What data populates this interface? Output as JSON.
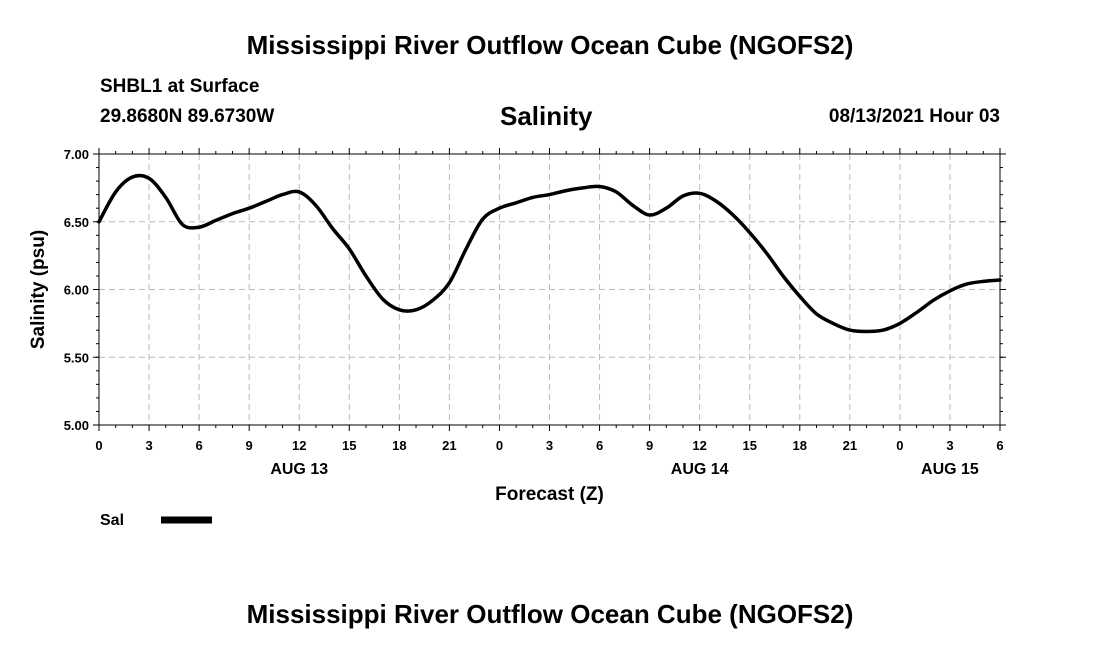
{
  "header": {
    "title": "Mississippi River Outflow Ocean Cube (NGOFS2)",
    "station": "SHBL1 at Surface",
    "coordinates": "29.8680N  89.6730W",
    "chart_title": "Salinity",
    "datetime": "08/13/2021 Hour 03"
  },
  "footer": {
    "title": "Mississippi River Outflow Ocean Cube (NGOFS2)"
  },
  "colors": {
    "line": "#000000",
    "grid": "#bbbbbb"
  },
  "chart_data": {
    "type": "line",
    "title": "Salinity",
    "xlabel": "Forecast (Z)",
    "ylabel": "Salinity (psu)",
    "xlim": [
      0,
      54
    ],
    "ylim": [
      5.0,
      7.0
    ],
    "yticks": [
      "5.00",
      "5.50",
      "6.00",
      "6.50",
      "7.00"
    ],
    "xticks": [
      {
        "hour": 0,
        "label": "0"
      },
      {
        "hour": 3,
        "label": "3"
      },
      {
        "hour": 6,
        "label": "6"
      },
      {
        "hour": 9,
        "label": "9"
      },
      {
        "hour": 12,
        "label": "12"
      },
      {
        "hour": 15,
        "label": "15"
      },
      {
        "hour": 18,
        "label": "18"
      },
      {
        "hour": 21,
        "label": "21"
      },
      {
        "hour": 24,
        "label": "0"
      },
      {
        "hour": 27,
        "label": "3"
      },
      {
        "hour": 30,
        "label": "6"
      },
      {
        "hour": 33,
        "label": "9"
      },
      {
        "hour": 36,
        "label": "12"
      },
      {
        "hour": 39,
        "label": "15"
      },
      {
        "hour": 42,
        "label": "18"
      },
      {
        "hour": 45,
        "label": "21"
      },
      {
        "hour": 48,
        "label": "0"
      },
      {
        "hour": 51,
        "label": "3"
      },
      {
        "hour": 54,
        "label": "6"
      }
    ],
    "date_labels": [
      {
        "hour": 12,
        "label": "AUG 13"
      },
      {
        "hour": 36,
        "label": "AUG 14"
      },
      {
        "hour": 51,
        "label": "AUG 15"
      }
    ],
    "grid": true,
    "legend": {
      "position": "bottom-left",
      "entries": [
        "Sal"
      ]
    },
    "series": [
      {
        "name": "Sal",
        "x": [
          0,
          1,
          2,
          3,
          4,
          5,
          6,
          7,
          8,
          9,
          10,
          11,
          12,
          13,
          14,
          15,
          16,
          17,
          18,
          19,
          20,
          21,
          22,
          23,
          24,
          25,
          26,
          27,
          28,
          29,
          30,
          31,
          32,
          33,
          34,
          35,
          36,
          37,
          38,
          39,
          40,
          41,
          42,
          43,
          44,
          45,
          46,
          47,
          48,
          49,
          50,
          51,
          52,
          53,
          54
        ],
        "y": [
          6.5,
          6.72,
          6.83,
          6.82,
          6.68,
          6.48,
          6.46,
          6.51,
          6.56,
          6.6,
          6.65,
          6.7,
          6.72,
          6.62,
          6.45,
          6.3,
          6.1,
          5.93,
          5.85,
          5.85,
          5.92,
          6.05,
          6.3,
          6.52,
          6.6,
          6.64,
          6.68,
          6.7,
          6.73,
          6.75,
          6.76,
          6.72,
          6.62,
          6.55,
          6.6,
          6.69,
          6.71,
          6.65,
          6.55,
          6.42,
          6.27,
          6.1,
          5.95,
          5.82,
          5.75,
          5.7,
          5.69,
          5.7,
          5.75,
          5.83,
          5.92,
          5.99,
          6.04,
          6.06,
          6.07
        ]
      }
    ]
  }
}
